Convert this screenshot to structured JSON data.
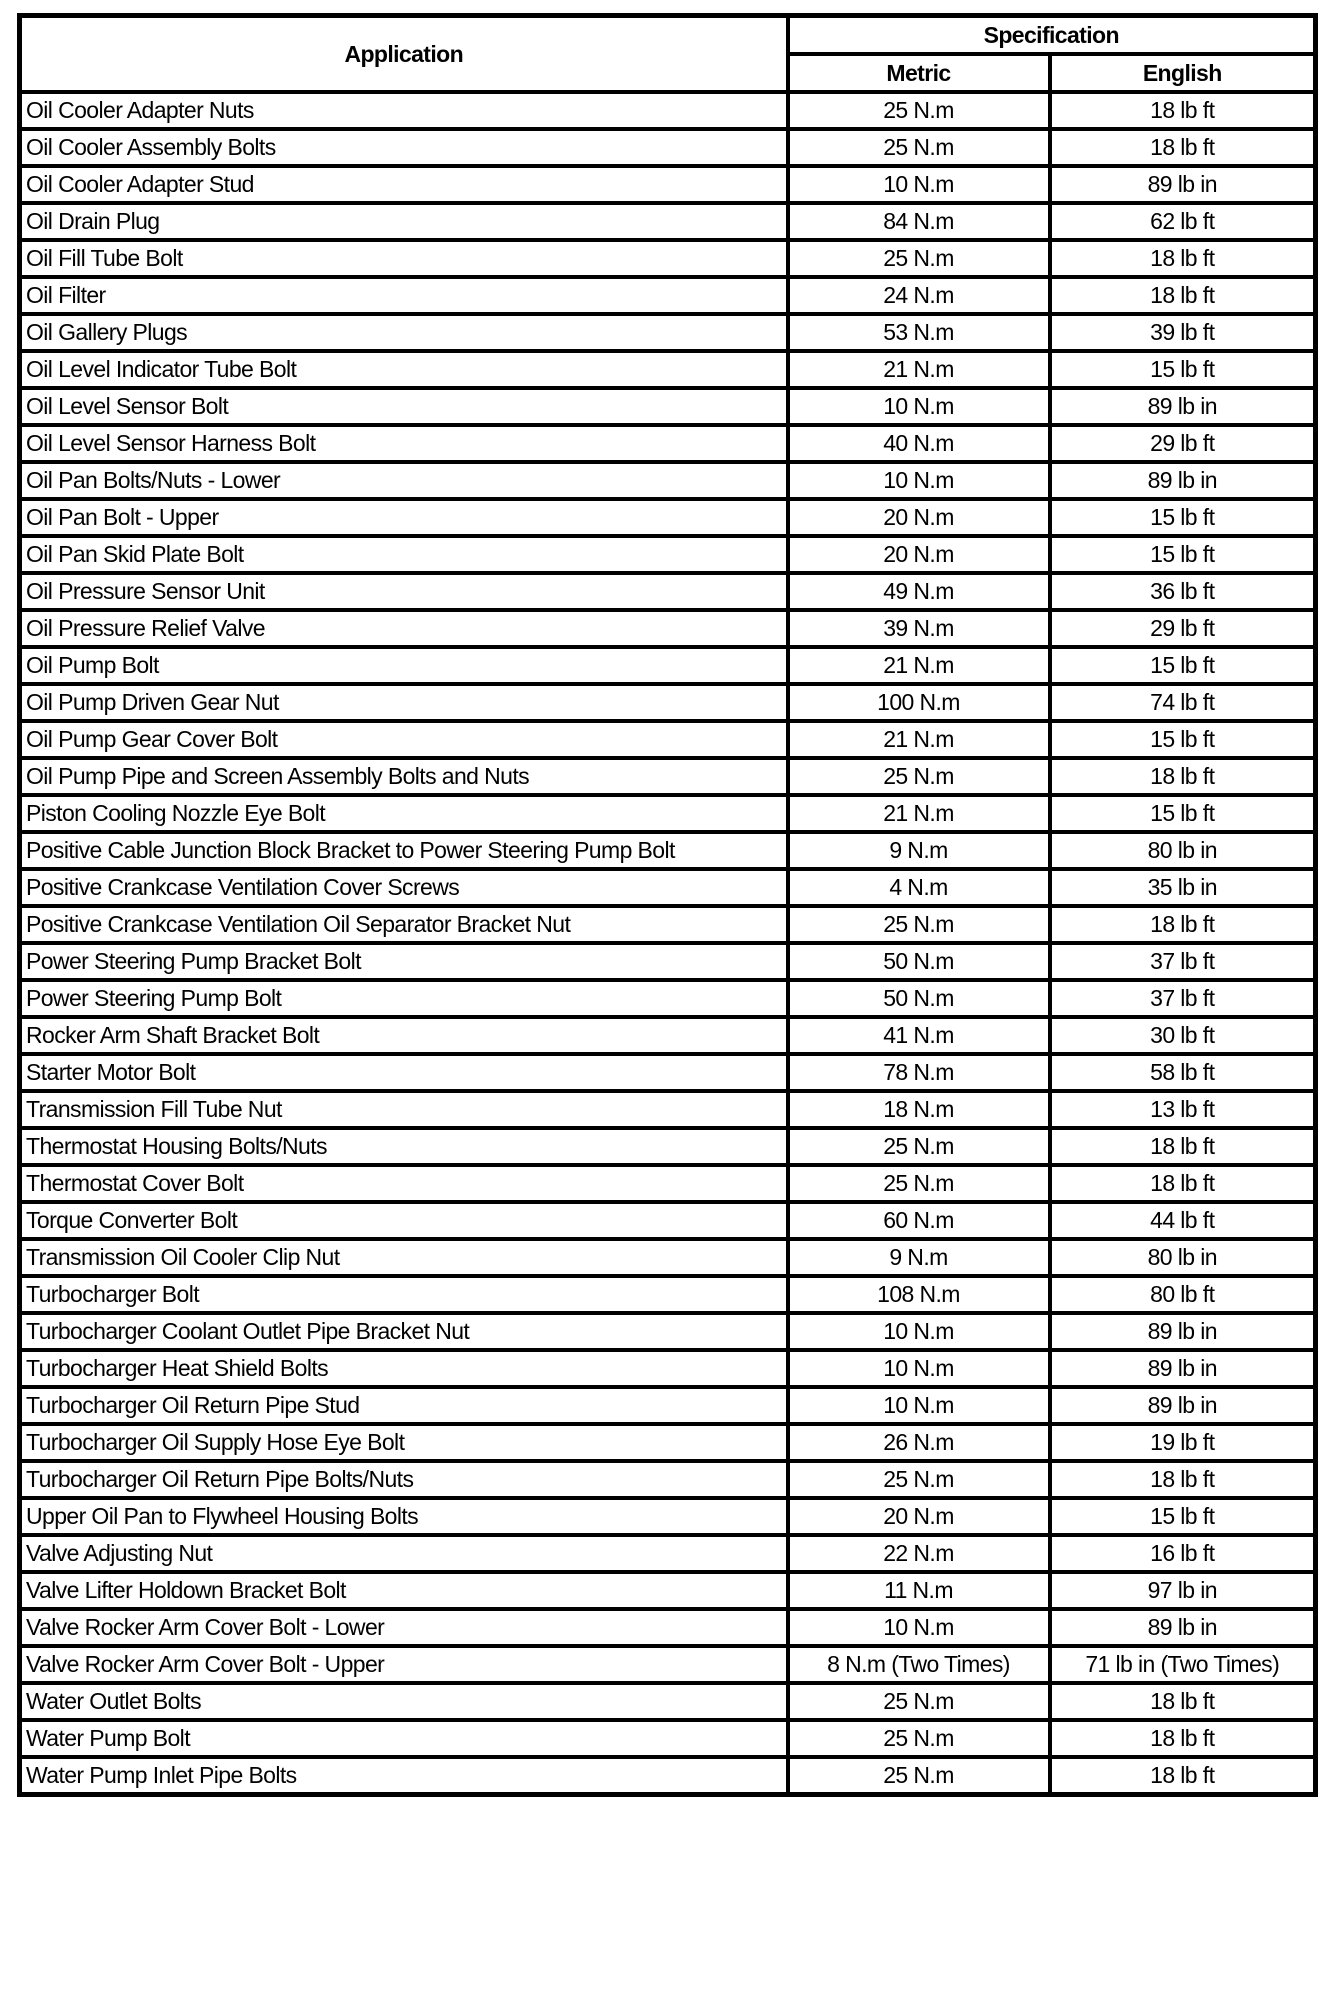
{
  "header": {
    "application": "Application",
    "specification": "Specification",
    "metric": "Metric",
    "english": "English"
  },
  "rows": [
    [
      "Oil Cooler Adapter Nuts",
      "25 N.m",
      "18 lb ft"
    ],
    [
      "Oil Cooler Assembly Bolts",
      "25 N.m",
      "18 lb ft"
    ],
    [
      "Oil Cooler Adapter Stud",
      "10 N.m",
      "89 lb in"
    ],
    [
      "Oil Drain Plug",
      "84 N.m",
      "62 lb ft"
    ],
    [
      "Oil Fill Tube Bolt",
      "25 N.m",
      "18 lb ft"
    ],
    [
      "Oil Filter",
      "24 N.m",
      "18 lb ft"
    ],
    [
      "Oil Gallery Plugs",
      "53 N.m",
      "39 lb ft"
    ],
    [
      "Oil Level Indicator Tube Bolt",
      "21 N.m",
      "15 lb ft"
    ],
    [
      "Oil Level Sensor Bolt",
      "10 N.m",
      "89 lb in"
    ],
    [
      "Oil Level Sensor Harness Bolt",
      "40 N.m",
      "29 lb ft"
    ],
    [
      "Oil Pan Bolts/Nuts - Lower",
      "10 N.m",
      "89 lb in"
    ],
    [
      "Oil Pan Bolt - Upper",
      "20 N.m",
      "15 lb ft"
    ],
    [
      "Oil Pan Skid Plate Bolt",
      "20 N.m",
      "15 lb ft"
    ],
    [
      "Oil Pressure Sensor Unit",
      "49 N.m",
      "36 lb ft"
    ],
    [
      "Oil Pressure Relief Valve",
      "39 N.m",
      "29 lb ft"
    ],
    [
      "Oil Pump Bolt",
      "21 N.m",
      "15 lb ft"
    ],
    [
      "Oil Pump Driven Gear Nut",
      "100 N.m",
      "74 lb ft"
    ],
    [
      "Oil Pump Gear Cover Bolt",
      "21 N.m",
      "15 lb ft"
    ],
    [
      "Oil Pump Pipe and Screen Assembly Bolts and Nuts",
      "25 N.m",
      "18 lb ft"
    ],
    [
      "Piston Cooling Nozzle Eye Bolt",
      "21 N.m",
      "15 lb ft"
    ],
    [
      "Positive Cable Junction Block Bracket to Power Steering Pump Bolt",
      "9 N.m",
      "80 lb in"
    ],
    [
      "Positive Crankcase Ventilation Cover Screws",
      "4 N.m",
      "35 lb in"
    ],
    [
      "Positive Crankcase Ventilation Oil Separator Bracket Nut",
      "25 N.m",
      "18 lb ft"
    ],
    [
      "Power Steering Pump Bracket Bolt",
      "50 N.m",
      "37 lb ft"
    ],
    [
      "Power Steering Pump Bolt",
      "50 N.m",
      "37 lb ft"
    ],
    [
      "Rocker Arm Shaft Bracket Bolt",
      "41 N.m",
      "30 lb ft"
    ],
    [
      "Starter Motor Bolt",
      "78 N.m",
      "58 lb ft"
    ],
    [
      "Transmission Fill Tube Nut",
      "18 N.m",
      "13 lb ft"
    ],
    [
      "Thermostat Housing Bolts/Nuts",
      "25 N.m",
      "18 lb ft"
    ],
    [
      "Thermostat Cover Bolt",
      "25 N.m",
      "18 lb ft"
    ],
    [
      "Torque Converter Bolt",
      "60 N.m",
      "44 lb ft"
    ],
    [
      "Transmission Oil Cooler Clip Nut",
      "9 N.m",
      "80 lb in"
    ],
    [
      "Turbocharger Bolt",
      "108 N.m",
      "80 lb ft"
    ],
    [
      "Turbocharger Coolant Outlet Pipe Bracket Nut",
      "10 N.m",
      "89 lb in"
    ],
    [
      "Turbocharger Heat Shield Bolts",
      "10 N.m",
      "89 lb in"
    ],
    [
      "Turbocharger Oil Return Pipe Stud",
      "10 N.m",
      "89 lb in"
    ],
    [
      "Turbocharger Oil Supply Hose Eye Bolt",
      "26 N.m",
      "19 lb ft"
    ],
    [
      "Turbocharger Oil Return Pipe Bolts/Nuts",
      "25 N.m",
      "18 lb ft"
    ],
    [
      "Upper Oil Pan to Flywheel Housing Bolts",
      "20 N.m",
      "15 lb ft"
    ],
    [
      "Valve Adjusting Nut",
      "22 N.m",
      "16 lb ft"
    ],
    [
      "Valve Lifter Holdown Bracket Bolt",
      "11 N.m",
      "97 lb in"
    ],
    [
      "Valve Rocker Arm Cover Bolt - Lower",
      "10 N.m",
      "89 lb in"
    ],
    [
      "Valve Rocker Arm Cover Bolt - Upper",
      "8 N.m (Two Times)",
      "71 lb in (Two Times)"
    ],
    [
      "Water Outlet Bolts",
      "25 N.m",
      "18 lb ft"
    ],
    [
      "Water Pump Bolt",
      "25 N.m",
      "18 lb ft"
    ],
    [
      "Water Pump Inlet Pipe Bolts",
      "25 N.m",
      "18 lb ft"
    ]
  ]
}
